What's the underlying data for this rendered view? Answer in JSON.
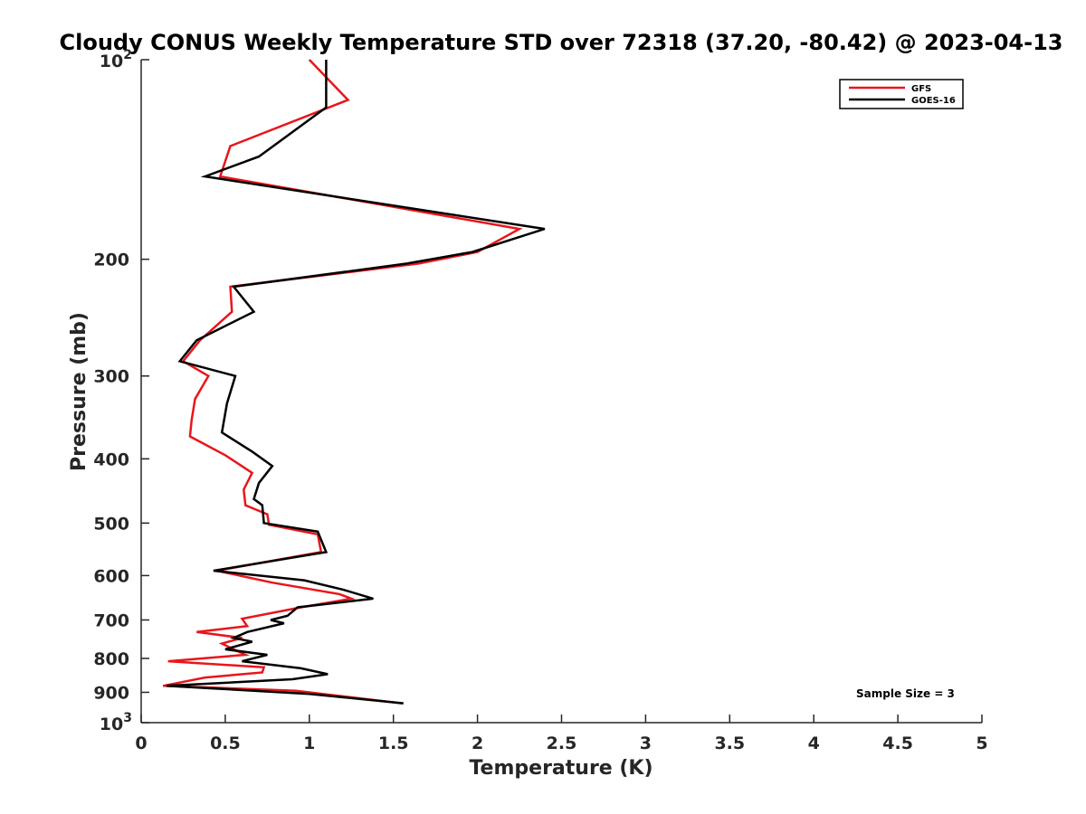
{
  "chart_data": {
    "type": "line",
    "title": "Cloudy CONUS Weekly Temperature STD over 72318 (37.20, -80.42) @ 2023-04-13",
    "xlabel": "Temperature (K)",
    "ylabel": "Pressure (mb)",
    "xlim": [
      0,
      5
    ],
    "ylim": [
      100,
      1000
    ],
    "y_scale": "log",
    "y_direction": "reversed",
    "x_ticks": [
      "0",
      "0.5",
      "1",
      "1.5",
      "2",
      "2.5",
      "3",
      "3.5",
      "4",
      "4.5",
      "5"
    ],
    "y_ticks": [
      {
        "value": 100,
        "base": "10",
        "exp": "2"
      },
      {
        "value": 200,
        "label": "200"
      },
      {
        "value": 300,
        "label": "300"
      },
      {
        "value": 400,
        "label": "400"
      },
      {
        "value": 500,
        "label": "500"
      },
      {
        "value": 600,
        "label": "600"
      },
      {
        "value": 700,
        "label": "700"
      },
      {
        "value": 800,
        "label": "800"
      },
      {
        "value": 900,
        "label": "900"
      },
      {
        "value": 1000,
        "base": "10",
        "exp": "3"
      }
    ],
    "legend_position": "top-right",
    "annotation": "Sample Size = 3",
    "series": [
      {
        "name": "GFS",
        "color": "#e8161b",
        "points": [
          [
            1.0,
            100
          ],
          [
            1.23,
            115
          ],
          [
            0.53,
            135
          ],
          [
            0.47,
            150
          ],
          [
            2.25,
            180
          ],
          [
            2.0,
            195
          ],
          [
            1.65,
            203
          ],
          [
            0.53,
            220
          ],
          [
            0.54,
            240
          ],
          [
            0.35,
            265
          ],
          [
            0.25,
            285
          ],
          [
            0.4,
            300
          ],
          [
            0.32,
            325
          ],
          [
            0.3,
            350
          ],
          [
            0.29,
            370
          ],
          [
            0.5,
            395
          ],
          [
            0.66,
            420
          ],
          [
            0.61,
            445
          ],
          [
            0.62,
            470
          ],
          [
            0.75,
            485
          ],
          [
            0.76,
            503
          ],
          [
            1.05,
            520
          ],
          [
            1.07,
            553
          ],
          [
            0.45,
            590
          ],
          [
            0.78,
            615
          ],
          [
            1.18,
            640
          ],
          [
            1.25,
            650
          ],
          [
            0.95,
            670
          ],
          [
            0.6,
            697
          ],
          [
            0.63,
            715
          ],
          [
            0.33,
            730
          ],
          [
            0.6,
            745
          ],
          [
            0.48,
            760
          ],
          [
            0.55,
            775
          ],
          [
            0.62,
            790
          ],
          [
            0.16,
            808
          ],
          [
            0.73,
            825
          ],
          [
            0.72,
            840
          ],
          [
            0.38,
            855
          ],
          [
            0.13,
            880
          ],
          [
            0.92,
            895
          ],
          [
            1.55,
            935
          ]
        ]
      },
      {
        "name": "GOES-16",
        "color": "#000000",
        "points": [
          [
            1.1,
            100
          ],
          [
            1.1,
            118
          ],
          [
            0.7,
            140
          ],
          [
            0.38,
            150
          ],
          [
            2.4,
            180
          ],
          [
            1.97,
            195
          ],
          [
            1.58,
            203
          ],
          [
            0.55,
            220
          ],
          [
            0.67,
            240
          ],
          [
            0.33,
            265
          ],
          [
            0.23,
            285
          ],
          [
            0.56,
            300
          ],
          [
            0.51,
            330
          ],
          [
            0.48,
            365
          ],
          [
            0.66,
            390
          ],
          [
            0.78,
            410
          ],
          [
            0.7,
            435
          ],
          [
            0.67,
            460
          ],
          [
            0.72,
            470
          ],
          [
            0.73,
            500
          ],
          [
            1.05,
            515
          ],
          [
            1.1,
            553
          ],
          [
            0.43,
            590
          ],
          [
            0.97,
            610
          ],
          [
            1.2,
            630
          ],
          [
            1.38,
            650
          ],
          [
            0.93,
            670
          ],
          [
            0.87,
            690
          ],
          [
            0.77,
            700
          ],
          [
            0.85,
            708
          ],
          [
            0.63,
            730
          ],
          [
            0.55,
            745
          ],
          [
            0.66,
            755
          ],
          [
            0.5,
            775
          ],
          [
            0.75,
            790
          ],
          [
            0.6,
            808
          ],
          [
            0.95,
            828
          ],
          [
            1.11,
            845
          ],
          [
            0.9,
            860
          ],
          [
            0.15,
            880
          ],
          [
            1.0,
            905
          ],
          [
            1.56,
            935
          ]
        ]
      }
    ]
  }
}
